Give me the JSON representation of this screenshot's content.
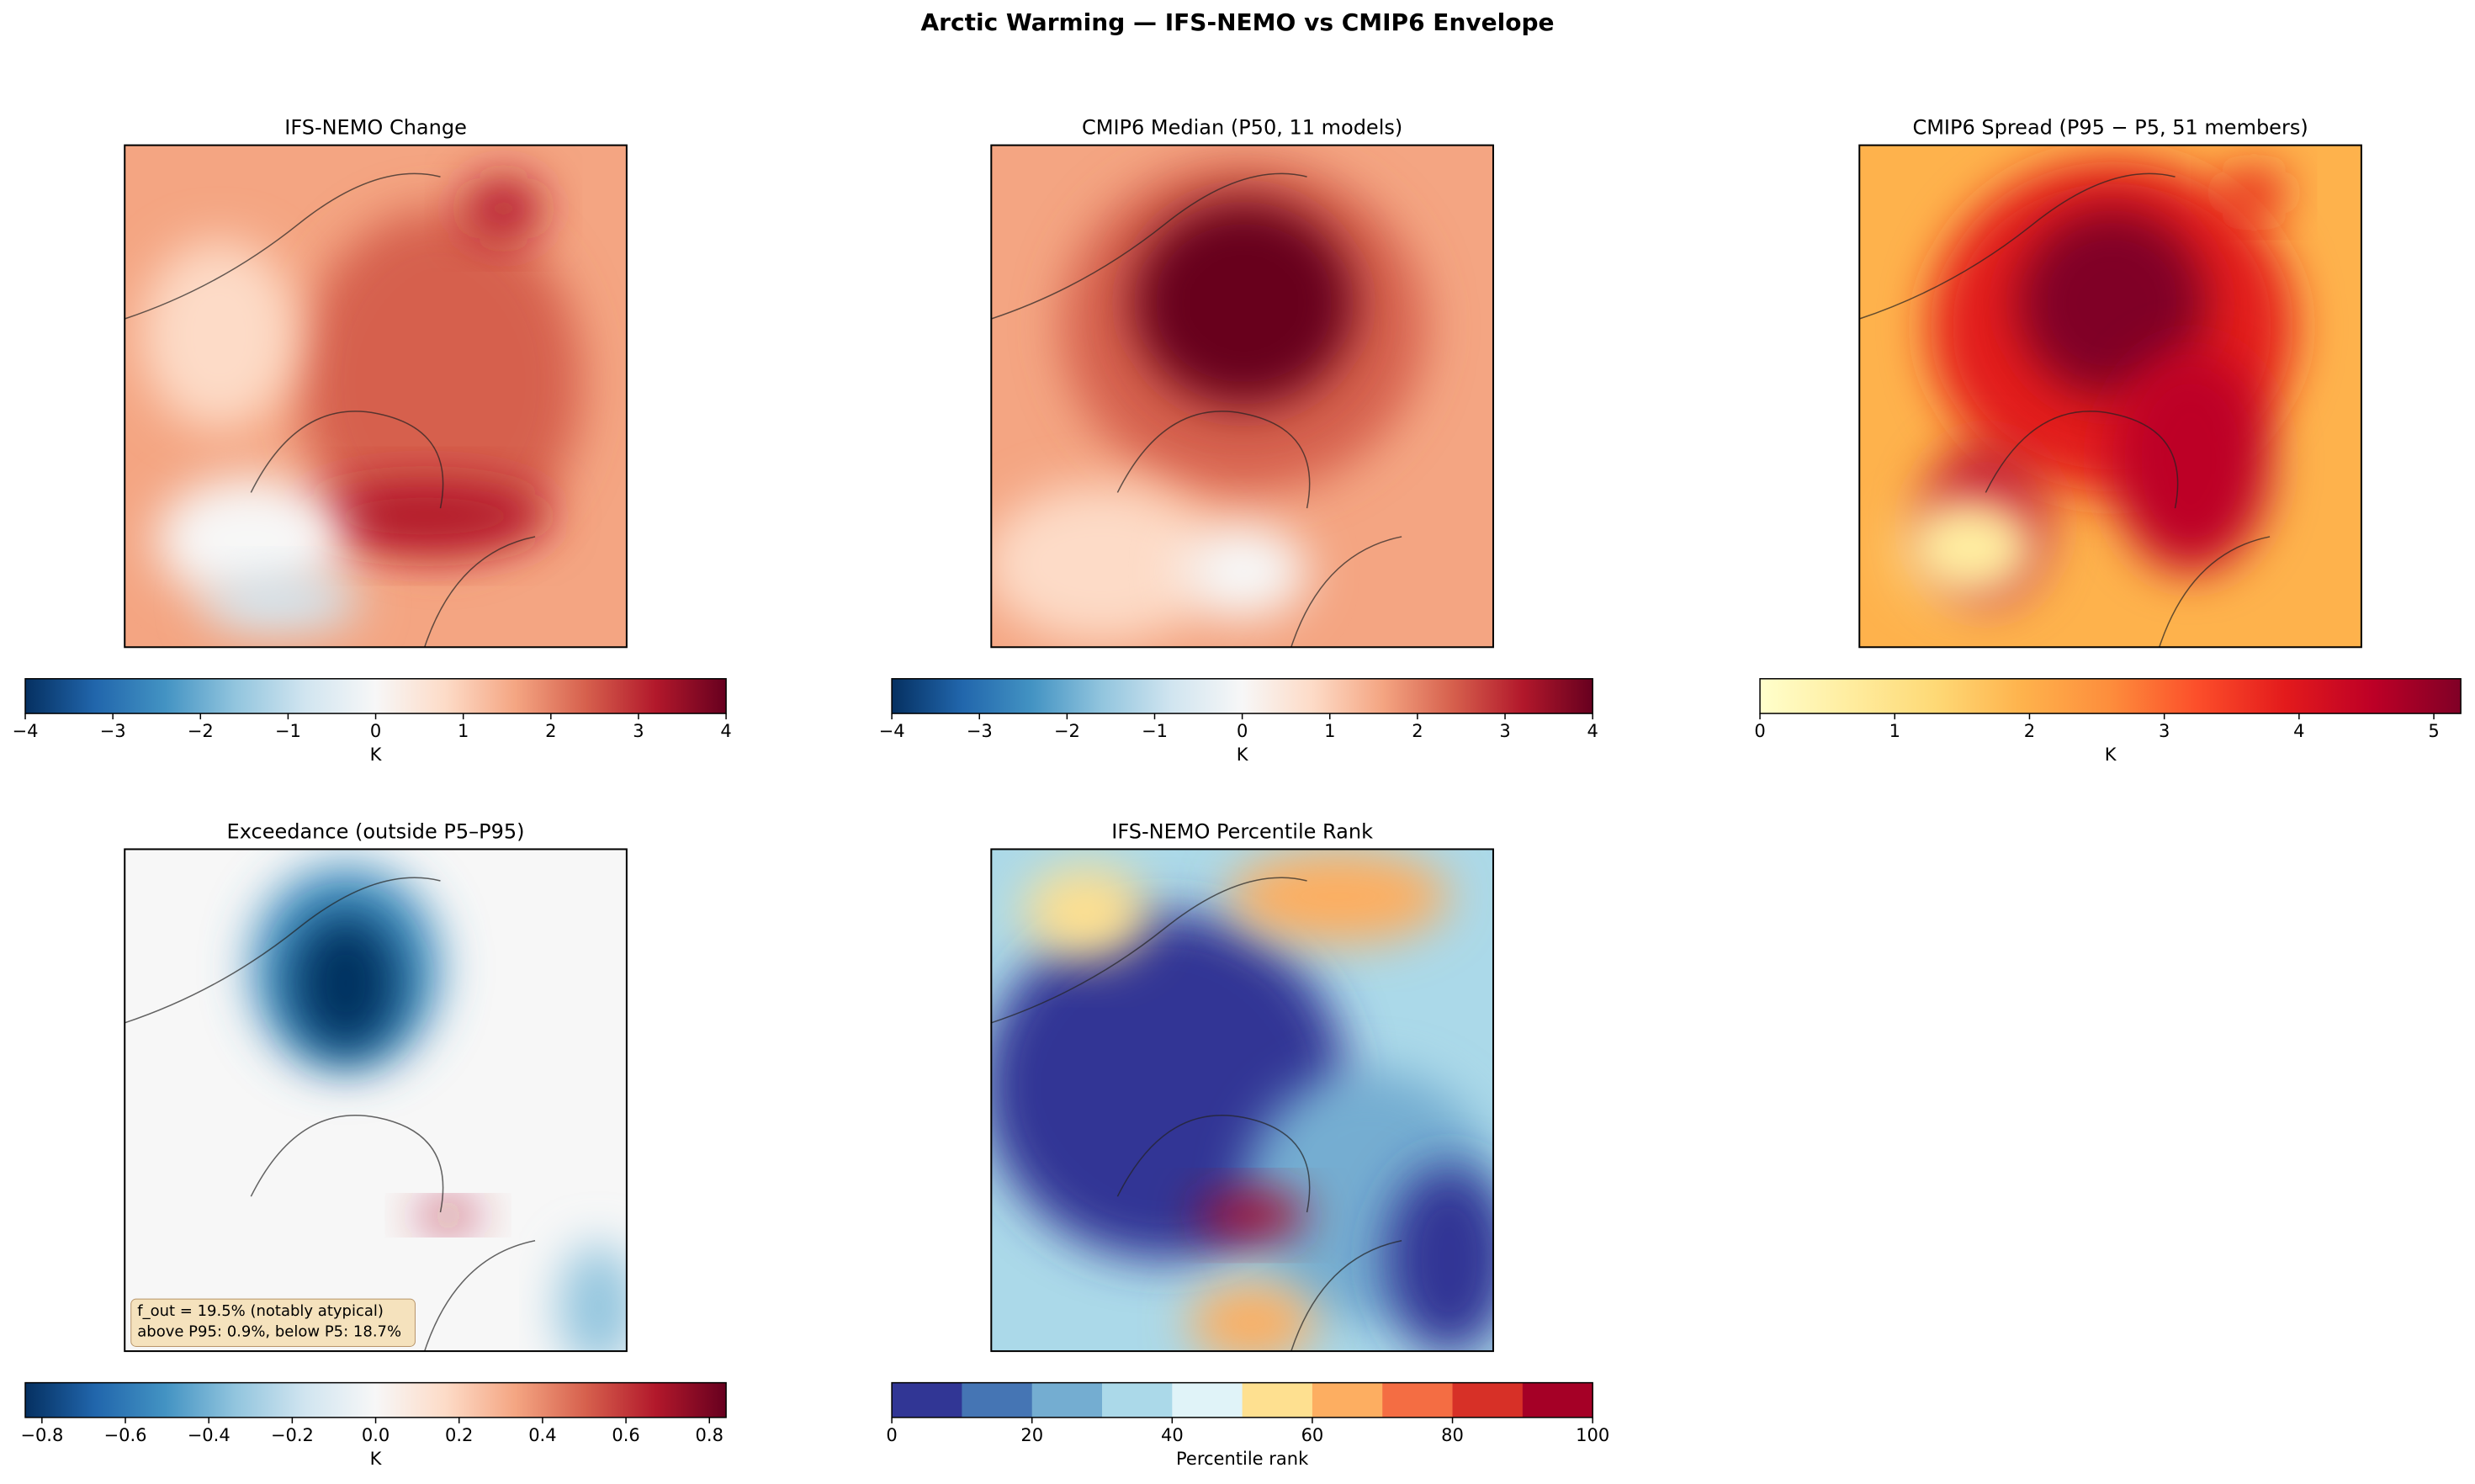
{
  "title": "Arctic Warming — IFS-NEMO vs CMIP6 Envelope",
  "chart_data": [
    {
      "type": "map",
      "title": "IFS-NEMO Change",
      "colorbar": {
        "label": "K",
        "lim": [
          -4,
          4
        ],
        "ticks": [
          {
            "value": -4,
            "label": "−4"
          },
          {
            "value": -3,
            "label": "−3"
          },
          {
            "value": -2,
            "label": "−2"
          },
          {
            "value": -1,
            "label": "−1"
          },
          0,
          1,
          2,
          3,
          4
        ],
        "colors": [
          "#053061",
          "#2166ac",
          "#4393c3",
          "#92c5de",
          "#d1e5f0",
          "#f7f7f7",
          "#fddbc7",
          "#f4a582",
          "#d6604d",
          "#b2182b",
          "#67001f"
        ]
      }
    },
    {
      "type": "map",
      "title": "CMIP6 Median (P50, 11 models)",
      "colorbar": {
        "label": "K",
        "lim": [
          -4,
          4
        ],
        "ticks": [
          {
            "value": -4,
            "label": "−4"
          },
          {
            "value": -3,
            "label": "−3"
          },
          {
            "value": -2,
            "label": "−2"
          },
          {
            "value": -1,
            "label": "−1"
          },
          0,
          1,
          2,
          3,
          4
        ],
        "colors": [
          "#053061",
          "#2166ac",
          "#4393c3",
          "#92c5de",
          "#d1e5f0",
          "#f7f7f7",
          "#fddbc7",
          "#f4a582",
          "#d6604d",
          "#b2182b",
          "#67001f"
        ]
      }
    },
    {
      "type": "map",
      "title": "CMIP6 Spread (P95 − P5, 51 members)",
      "colorbar": {
        "label": "K",
        "lim": [
          0,
          5.2
        ],
        "ticks": [
          0,
          1,
          2,
          3,
          4,
          5
        ],
        "colors": [
          "#ffffcc",
          "#ffeda0",
          "#fed976",
          "#feb24c",
          "#fd8d3c",
          "#fc4e2a",
          "#e31a1c",
          "#bd0026",
          "#800026"
        ]
      }
    },
    {
      "type": "map",
      "title": "Exceedance (outside P5–P95)",
      "annotation": [
        "f_out = 19.5% (notably atypical)",
        "above P95: 0.9%, below P5: 18.7%"
      ],
      "colorbar": {
        "label": "K",
        "lim": [
          -0.84,
          0.84
        ],
        "ticks": [
          {
            "value": -0.8,
            "label": "−0.8"
          },
          {
            "value": -0.6,
            "label": "−0.6"
          },
          {
            "value": -0.4,
            "label": "−0.4"
          },
          {
            "value": -0.2,
            "label": "−0.2"
          },
          {
            "value": 0,
            "label": "0.0"
          },
          0.2,
          0.4,
          0.6,
          0.8
        ],
        "colors": [
          "#053061",
          "#2166ac",
          "#4393c3",
          "#92c5de",
          "#d1e5f0",
          "#f7f7f7",
          "#fddbc7",
          "#f4a582",
          "#d6604d",
          "#b2182b",
          "#67001f"
        ]
      }
    },
    {
      "type": "map",
      "title": "IFS-NEMO Percentile Rank",
      "colorbar": {
        "label": "Percentile rank",
        "lim": [
          0,
          100
        ],
        "ticks": [
          0,
          20,
          40,
          60,
          80,
          100
        ],
        "discrete": true,
        "colors": [
          "#313695",
          "#4575b4",
          "#74add1",
          "#abd9e9",
          "#e0f3f8",
          "#fee090",
          "#fdae61",
          "#f46d43",
          "#d73027",
          "#a50026"
        ]
      }
    }
  ]
}
